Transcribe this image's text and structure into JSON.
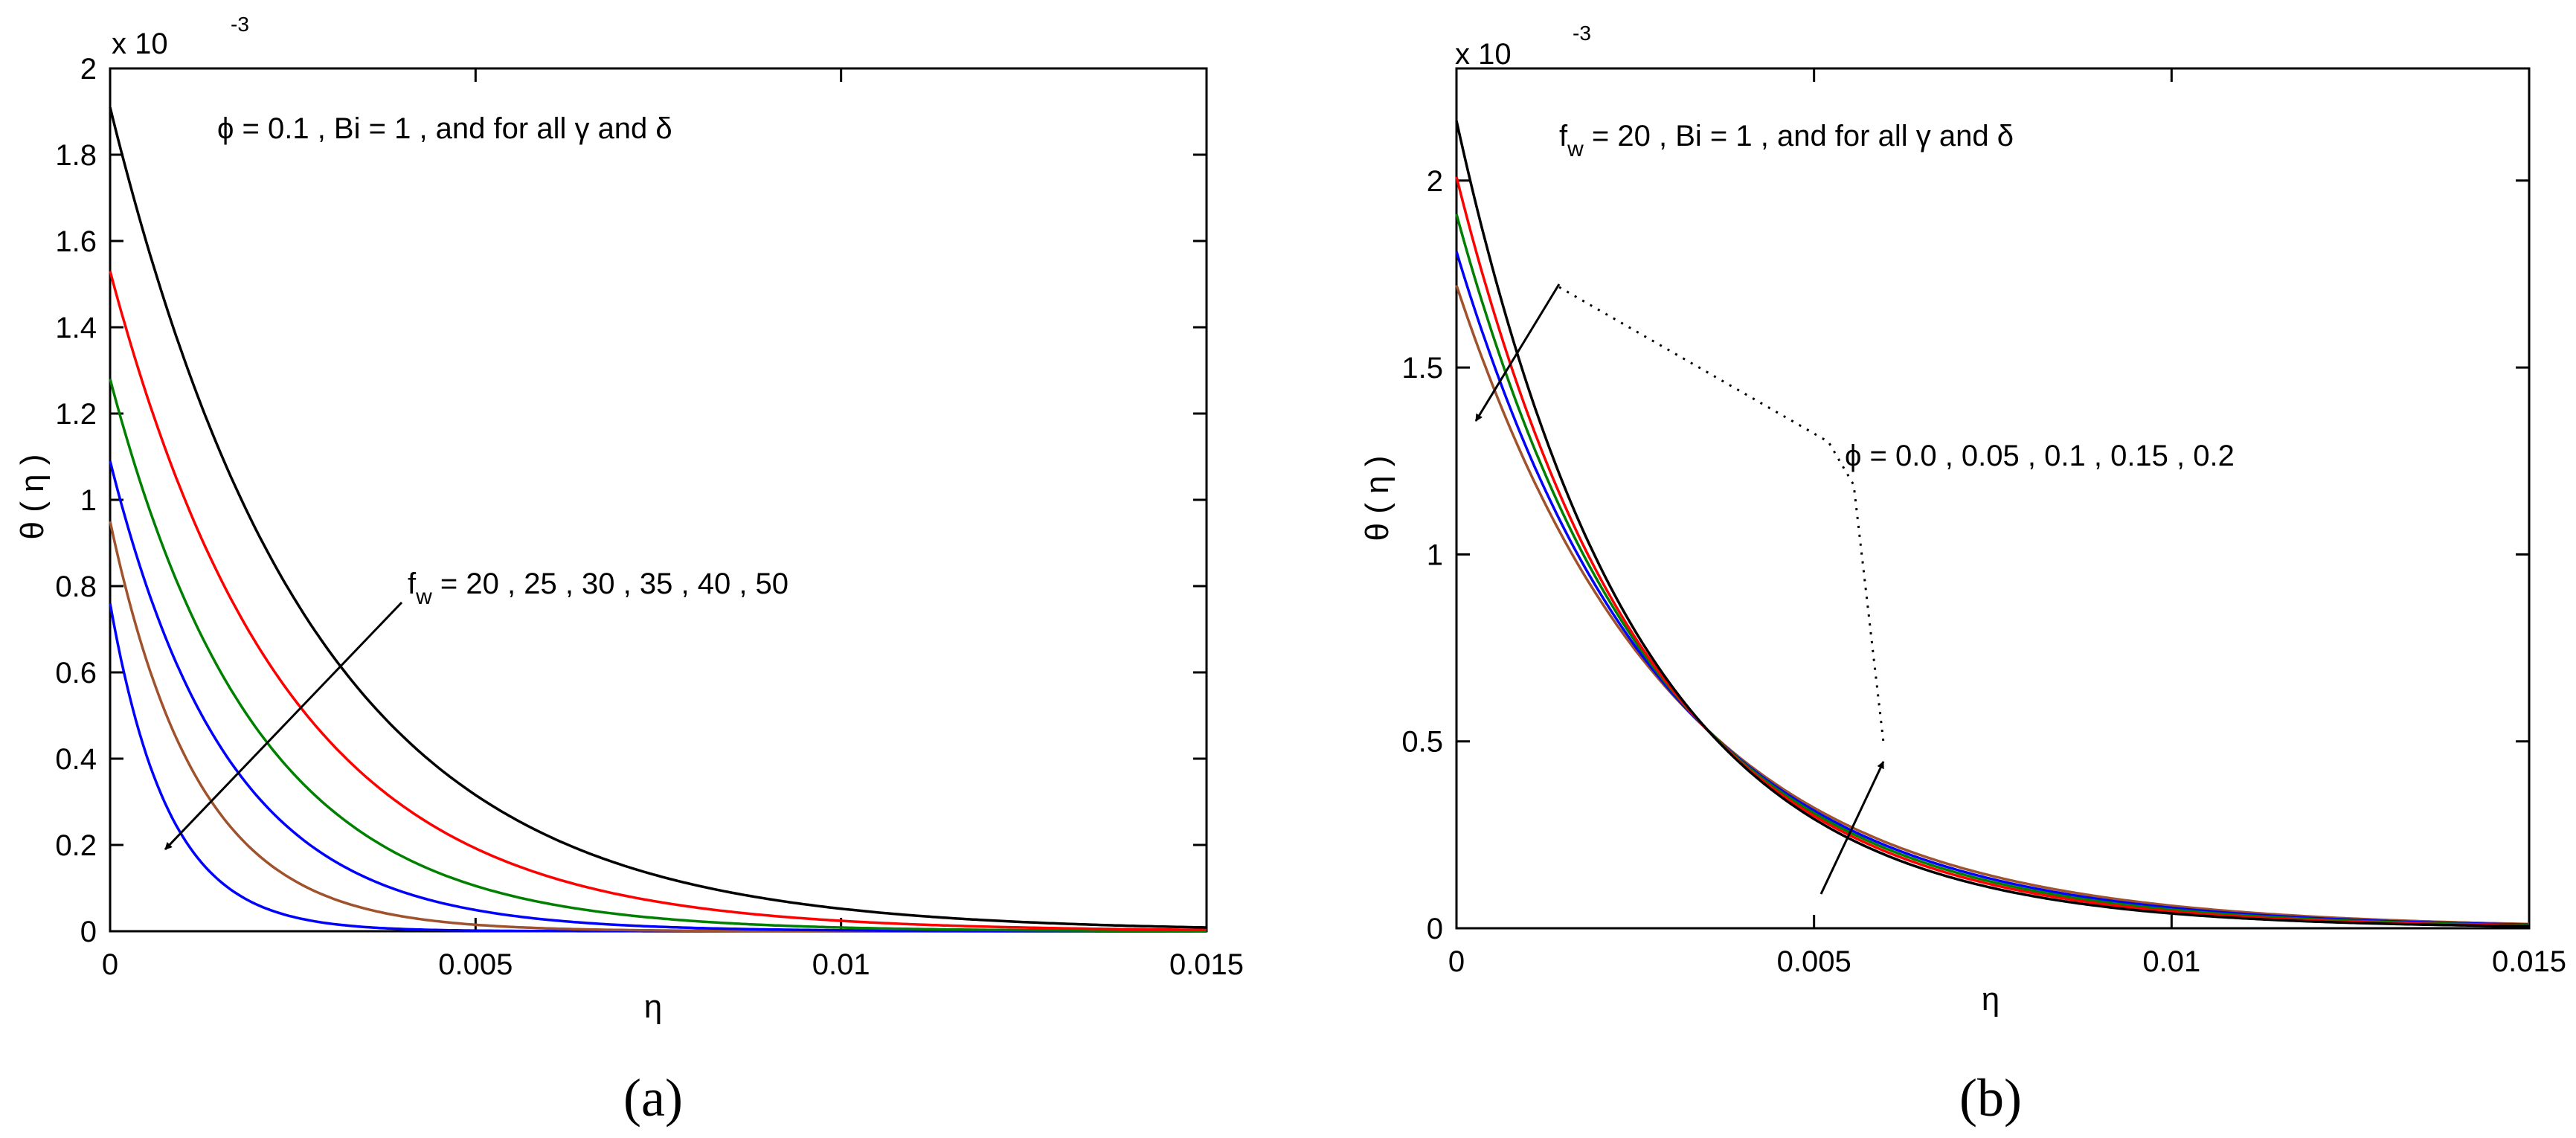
{
  "chart_data": [
    {
      "type": "line",
      "panel_label": "(a)",
      "xlabel": "η",
      "ylabel": "θ ( η )",
      "y_multiplier": "x 10",
      "y_multiplier_exp": "-3",
      "xlim": [
        0,
        0.015
      ],
      "ylim": [
        0,
        2
      ],
      "xticks": [
        0,
        0.005,
        0.01,
        0.015
      ],
      "xtick_labels": [
        "0",
        "0.005",
        "0.01",
        "0.015"
      ],
      "yticks": [
        0,
        0.2,
        0.4,
        0.6,
        0.8,
        1,
        1.2,
        1.4,
        1.6,
        1.8,
        2
      ],
      "ytick_labels": [
        "0",
        "0.2",
        "0.4",
        "0.6",
        "0.8",
        "1",
        "1.2",
        "1.4",
        "1.6",
        "1.8",
        "2"
      ],
      "grid": false,
      "annotations": {
        "condition": "ϕ = 0.1   , Bi = 1 , and for all γ and δ",
        "param_prefix": "f",
        "param_sub": "w",
        "param_values": " =  20  , 25 , 30 , 35  ,  40 , 50"
      },
      "series": [
        {
          "color": "#0000ff",
          "theta0": 0.76,
          "k": 1250
        },
        {
          "color": "#a0522d",
          "theta0": 0.95,
          "k": 830
        },
        {
          "color": "#0000ff",
          "theta0": 1.09,
          "k": 620
        },
        {
          "color": "#008000",
          "theta0": 1.28,
          "k": 500
        },
        {
          "color": "#ff0000",
          "theta0": 1.53,
          "k": 415
        },
        {
          "color": "#000000",
          "theta0": 1.91,
          "k": 360
        }
      ]
    },
    {
      "type": "line",
      "panel_label": "(b)",
      "xlabel": "η",
      "ylabel": "θ ( η )",
      "y_multiplier": "x 10",
      "y_multiplier_exp": "-3",
      "xlim": [
        0,
        0.015
      ],
      "ylim": [
        0,
        2.3
      ],
      "xticks": [
        0,
        0.005,
        0.01,
        0.015
      ],
      "xtick_labels": [
        "0",
        "0.005",
        "0.01",
        "0.015"
      ],
      "yticks": [
        0,
        0.5,
        1,
        1.5,
        2
      ],
      "ytick_labels": [
        "0",
        "0.5",
        "1",
        "1.5",
        "2"
      ],
      "grid": false,
      "annotations": {
        "condition_prefix": "f",
        "condition_sub": "w",
        "condition_rest": " = 20   , Bi = 1 , and for all γ and δ",
        "param_values": "ϕ = 0.0 , 0.05 , 0.1 , 0.15 , 0.2"
      },
      "series": [
        {
          "color": "#a0522d",
          "theta0": 1.72,
          "k": 335
        },
        {
          "color": "#0000ff",
          "theta0": 1.81,
          "k": 350
        },
        {
          "color": "#008000",
          "theta0": 1.91,
          "k": 365
        },
        {
          "color": "#ff0000",
          "theta0": 2.01,
          "k": 380
        },
        {
          "color": "#000000",
          "theta0": 2.16,
          "k": 400
        }
      ]
    }
  ]
}
